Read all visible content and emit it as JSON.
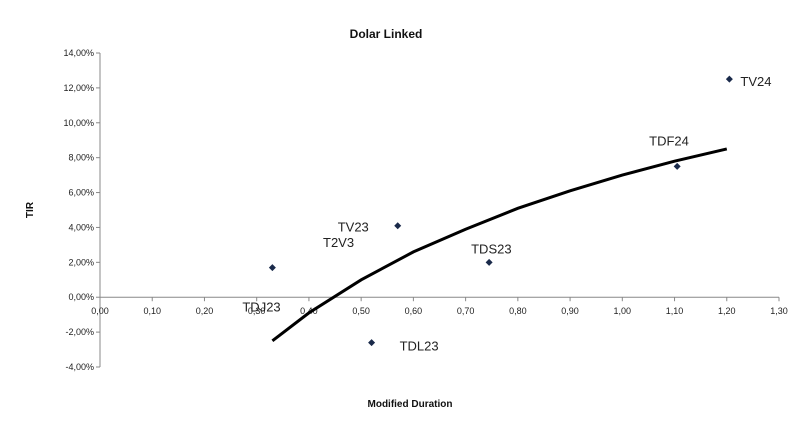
{
  "chart_data": {
    "type": "scatter",
    "title": "Dolar Linked",
    "xlabel": "Modified Duration",
    "ylabel": "TIR",
    "xlim": [
      0,
      1.3
    ],
    "ylim": [
      -0.04,
      0.14
    ],
    "x_ticks": [
      0,
      0.1,
      0.2,
      0.3,
      0.4,
      0.5,
      0.6,
      0.7,
      0.8,
      0.9,
      1.0,
      1.1,
      1.2,
      1.3
    ],
    "x_tick_labels": [
      "0,00",
      "0,10",
      "0,20",
      "0,30",
      "0,40",
      "0,50",
      "0,60",
      "0,70",
      "0,80",
      "0,90",
      "1,00",
      "1,10",
      "1,20",
      "1,30"
    ],
    "y_ticks": [
      -0.04,
      -0.02,
      0,
      0.02,
      0.04,
      0.06,
      0.08,
      0.1,
      0.12,
      0.14
    ],
    "y_tick_labels": [
      "-4,00%",
      "-2,00%",
      "0,00%",
      "2,00%",
      "4,00%",
      "6,00%",
      "8,00%",
      "10,00%",
      "12,00%",
      "14,00%"
    ],
    "grid": false,
    "marker_color": "#1a2a4a",
    "trendline_color": "#000000",
    "points": [
      {
        "label": "TDJ23",
        "x": 0.33,
        "y": 0.017
      },
      {
        "label": "TDL23",
        "x": 0.52,
        "y": -0.026
      },
      {
        "label": "TV23",
        "x": 0.57,
        "y": 0.041
      },
      {
        "label": "TDS23",
        "x": 0.745,
        "y": 0.02
      },
      {
        "label": "TDF24",
        "x": 1.105,
        "y": 0.075
      },
      {
        "label": "TV24",
        "x": 1.205,
        "y": 0.125
      }
    ],
    "annotations": [
      "T2V3"
    ],
    "trendline": {
      "type": "logarithmic",
      "x": [
        0.33,
        0.4,
        0.5,
        0.6,
        0.7,
        0.8,
        0.9,
        1.0,
        1.1,
        1.2
      ],
      "y": [
        -0.025,
        -0.009,
        0.01,
        0.026,
        0.039,
        0.051,
        0.061,
        0.07,
        0.078,
        0.085
      ]
    }
  }
}
